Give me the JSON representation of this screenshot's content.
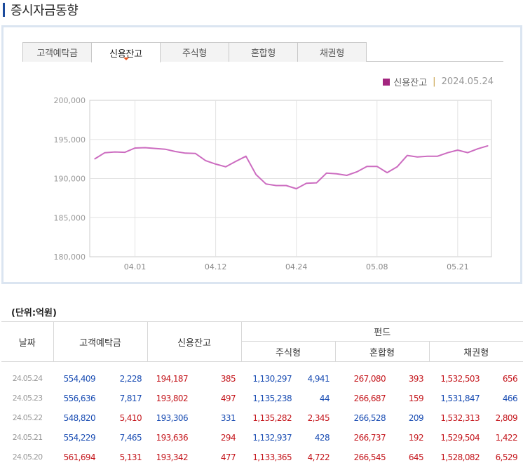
{
  "page_title": "증시자금동향",
  "tabs": [
    {
      "label": "고객예탁금",
      "active": false
    },
    {
      "label": "신용잔고",
      "active": true
    },
    {
      "label": "주식형",
      "active": false
    },
    {
      "label": "혼합형",
      "active": false
    },
    {
      "label": "채권형",
      "active": false
    }
  ],
  "legend": {
    "series": "신용잔고",
    "separator": "|",
    "date": "2024.05.24",
    "color": "#a3267f"
  },
  "chart_data": {
    "type": "line",
    "series": [
      {
        "name": "신용잔고",
        "color": "#cc6cc0",
        "values": [
          192500,
          193300,
          193400,
          193350,
          193900,
          193950,
          193850,
          193750,
          193450,
          193250,
          193200,
          192300,
          191850,
          191500,
          192200,
          192850,
          190500,
          189300,
          189100,
          189100,
          188700,
          189400,
          189450,
          190700,
          190600,
          190400,
          190850,
          191550,
          191550,
          190750,
          191500,
          192950,
          192750,
          192850,
          192850,
          193300,
          193636,
          193306,
          193802,
          194187
        ]
      }
    ],
    "x_tick_labels": [
      "04.01",
      "04.12",
      "04.24",
      "05.08",
      "05.21"
    ],
    "x_tick_index": [
      4,
      12,
      20,
      28,
      36
    ],
    "y_ticks": [
      180000,
      185000,
      190000,
      195000,
      200000
    ],
    "y_tick_labels": [
      "180,000",
      "185,000",
      "190,000",
      "195,000",
      "200,000"
    ],
    "ylim": [
      180000,
      200000
    ],
    "grid": true
  },
  "unit_label": "(단위:억원)",
  "table": {
    "headers": {
      "date": "날짜",
      "deposit": "고객예탁금",
      "credit": "신용잔고",
      "fund": "펀드",
      "equity": "주식형",
      "mixed": "혼합형",
      "bond": "채권형"
    },
    "rows": [
      {
        "date": "24.05.24",
        "deposit": "554,409",
        "deposit_chg": "2,228",
        "credit": "194,187",
        "credit_chg": "385",
        "equity": "1,130,297",
        "equity_chg": "4,941",
        "mixed": "267,080",
        "mixed_chg": "393",
        "bond": "1,532,503",
        "bond_chg": "656"
      },
      {
        "date": "24.05.23",
        "deposit": "556,636",
        "deposit_chg": "7,817",
        "credit": "193,802",
        "credit_chg": "497",
        "equity": "1,135,238",
        "equity_chg": "44",
        "mixed": "266,687",
        "mixed_chg": "159",
        "bond": "1,531,847",
        "bond_chg": "466"
      },
      {
        "date": "24.05.22",
        "deposit": "548,820",
        "deposit_chg": "5,410",
        "credit": "193,306",
        "credit_chg": "331",
        "equity": "1,135,282",
        "equity_chg": "2,345",
        "mixed": "266,528",
        "mixed_chg": "209",
        "bond": "1,532,313",
        "bond_chg": "2,809"
      },
      {
        "date": "24.05.21",
        "deposit": "554,229",
        "deposit_chg": "7,465",
        "credit": "193,636",
        "credit_chg": "294",
        "equity": "1,132,937",
        "equity_chg": "428",
        "mixed": "266,737",
        "mixed_chg": "192",
        "bond": "1,529,504",
        "bond_chg": "1,422"
      },
      {
        "date": "24.05.20",
        "deposit": "561,694",
        "deposit_chg": "5,131",
        "credit": "193,342",
        "credit_chg": "477",
        "equity": "1,133,365",
        "equity_chg": "4,722",
        "mixed": "266,545",
        "mixed_chg": "645",
        "bond": "1,528,082",
        "bond_chg": "6,529"
      }
    ],
    "colors": {
      "deposit": "blue",
      "deposit_chg": "blue",
      "credit": "red",
      "credit_chg": "red",
      "equity": "blue",
      "equity_chg": "blue",
      "mixed": "red",
      "mixed_chg": "red",
      "bond": "red",
      "bond_chg": "red"
    },
    "row_colors_override": {
      "1": {
        "bond": "blue",
        "bond_chg": "blue"
      },
      "2": {
        "deposit": "blue",
        "deposit_chg": "red",
        "credit": "blue",
        "credit_chg": "blue",
        "equity": "red",
        "equity_chg": "red",
        "mixed": "blue",
        "mixed_chg": "blue"
      },
      "3": {
        "deposit_chg": "blue",
        "mixed": "red",
        "mixed_chg": "red",
        "bond": "red",
        "bond_chg": "red"
      },
      "4": {
        "deposit": "red",
        "deposit_chg": "red",
        "credit": "red",
        "credit_chg": "red",
        "equity": "red",
        "equity_chg": "red",
        "mixed": "red",
        "mixed_chg": "red",
        "bond": "red",
        "bond_chg": "red"
      }
    }
  }
}
